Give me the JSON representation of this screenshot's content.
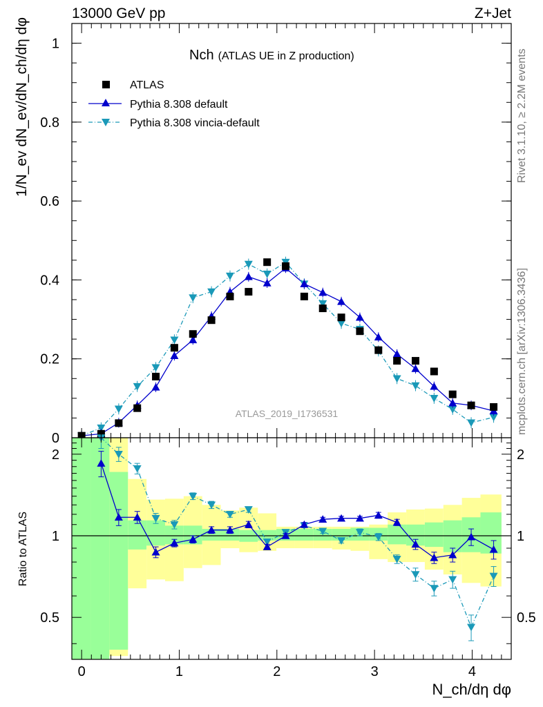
{
  "header": {
    "left": "13000 GeV pp",
    "right": "Z+Jet"
  },
  "side_labels": {
    "rivet": "Rivet 3.1.10, ≥ 2.2M events",
    "mcplots": "mcplots.cern.ch [arXiv:1306.3436]"
  },
  "watermark": "ATLAS_2019_I1736531",
  "colors": {
    "data": "#000000",
    "default": "#0000cc",
    "vincia": "#1a99b8",
    "band_inner": "#99ff99",
    "band_outer": "#ffff99"
  },
  "chart_data": [
    {
      "type": "scatter",
      "title": "Nch",
      "subtitle": "(ATLAS UE in Z production)",
      "ylabel": "1/N_ev dN_ev/dN_ch/dη dφ",
      "xlim": [
        -0.1,
        4.4
      ],
      "ylim": [
        0,
        1.05
      ],
      "y_ticks": [
        0,
        0.2,
        0.4,
        0.6,
        0.8,
        1
      ],
      "y_tick_labels": [
        "0",
        "0.2",
        "0.4",
        "0.6",
        "0.8",
        "1"
      ],
      "legend_position": "top-left",
      "series": [
        {
          "name": "ATLAS",
          "marker": "square",
          "x": [
            0.0,
            0.2,
            0.38,
            0.57,
            0.76,
            0.95,
            1.14,
            1.33,
            1.52,
            1.71,
            1.9,
            2.09,
            2.28,
            2.47,
            2.66,
            2.85,
            3.04,
            3.23,
            3.42,
            3.61,
            3.8,
            3.99,
            4.22
          ],
          "y": [
            0.005,
            0.01,
            0.037,
            0.075,
            0.155,
            0.228,
            0.263,
            0.298,
            0.358,
            0.37,
            0.445,
            0.435,
            0.358,
            0.328,
            0.305,
            0.27,
            0.222,
            0.195,
            0.195,
            0.168,
            0.11,
            0.082,
            0.078
          ]
        },
        {
          "name": "Pythia 8.308 default",
          "marker": "triangle-up",
          "x": [
            0.0,
            0.2,
            0.38,
            0.57,
            0.76,
            0.95,
            1.14,
            1.33,
            1.52,
            1.71,
            1.9,
            2.09,
            2.28,
            2.47,
            2.66,
            2.85,
            3.04,
            3.23,
            3.42,
            3.61,
            3.8,
            3.99,
            4.22
          ],
          "y": [
            0.005,
            0.01,
            0.038,
            0.082,
            0.128,
            0.208,
            0.248,
            0.308,
            0.37,
            0.408,
            0.392,
            0.43,
            0.39,
            0.368,
            0.345,
            0.305,
            0.255,
            0.212,
            0.175,
            0.13,
            0.088,
            0.082,
            0.068
          ]
        },
        {
          "name": "Pythia 8.308 vincia-default",
          "marker": "triangle-down",
          "x": [
            0.0,
            0.2,
            0.38,
            0.57,
            0.76,
            0.95,
            1.14,
            1.33,
            1.52,
            1.71,
            1.9,
            2.09,
            2.28,
            2.47,
            2.66,
            2.85,
            3.04,
            3.23,
            3.42,
            3.61,
            3.8,
            3.99,
            4.22
          ],
          "y": [
            0.005,
            0.025,
            0.073,
            0.13,
            0.178,
            0.248,
            0.355,
            0.37,
            0.41,
            0.44,
            0.415,
            0.445,
            0.39,
            0.34,
            0.29,
            0.275,
            0.22,
            0.15,
            0.132,
            0.1,
            0.072,
            0.038,
            0.052
          ]
        }
      ]
    },
    {
      "type": "scatter",
      "ylabel": "Ratio to ATLAS",
      "xlabel": "N_ch/dη dφ",
      "xlim": [
        -0.1,
        4.4
      ],
      "ylim": [
        0.35,
        2.3
      ],
      "y_scale": "log",
      "reference": 1,
      "x_ticks": [
        0,
        1,
        2,
        3,
        4
      ],
      "x_tick_labels": [
        "0",
        "1",
        "2",
        "3",
        "4"
      ],
      "y_ticks": [
        0.5,
        1,
        2
      ],
      "y_tick_labels": [
        "0.5",
        "1",
        "2"
      ],
      "bands": {
        "edges": [
          -0.1,
          0.095,
          0.285,
          0.475,
          0.665,
          0.855,
          1.045,
          1.235,
          1.425,
          1.615,
          1.805,
          1.995,
          2.185,
          2.375,
          2.565,
          2.755,
          2.945,
          3.135,
          3.325,
          3.515,
          3.705,
          3.895,
          4.085,
          4.3
        ],
        "inner_lo": [
          0.35,
          0.35,
          0.38,
          0.89,
          0.92,
          0.93,
          0.93,
          0.96,
          0.96,
          0.95,
          0.96,
          0.96,
          0.96,
          0.96,
          0.96,
          0.96,
          0.96,
          0.93,
          0.92,
          0.91,
          0.87,
          0.87,
          0.86
        ],
        "inner_hi": [
          2.3,
          2.3,
          1.72,
          1.14,
          1.14,
          1.09,
          1.09,
          1.06,
          1.06,
          1.05,
          1.05,
          1.06,
          1.06,
          1.06,
          1.06,
          1.07,
          1.07,
          1.1,
          1.1,
          1.12,
          1.14,
          1.17,
          1.22
        ],
        "outer_lo": [
          0.35,
          0.35,
          0.36,
          0.64,
          0.69,
          0.68,
          0.76,
          0.78,
          0.9,
          0.87,
          0.88,
          0.9,
          0.9,
          0.9,
          0.89,
          0.88,
          0.82,
          0.8,
          0.8,
          0.75,
          0.72,
          0.67,
          0.65
        ],
        "outer_hi": [
          2.3,
          2.3,
          2.3,
          1.62,
          1.36,
          1.37,
          1.4,
          1.3,
          1.24,
          1.27,
          1.21,
          1.08,
          1.08,
          1.08,
          1.08,
          1.08,
          1.1,
          1.22,
          1.25,
          1.26,
          1.3,
          1.38,
          1.42
        ]
      },
      "series": [
        {
          "name": "Pythia 8.308 default",
          "x": [
            0.2,
            0.38,
            0.57,
            0.76,
            0.95,
            1.14,
            1.33,
            1.52,
            1.71,
            1.9,
            2.09,
            2.28,
            2.47,
            2.66,
            2.85,
            3.04,
            3.23,
            3.42,
            3.61,
            3.8,
            3.99,
            4.22
          ],
          "y": [
            1.85,
            1.17,
            1.17,
            0.87,
            0.94,
            0.97,
            1.05,
            1.05,
            1.1,
            0.91,
            1.0,
            1.1,
            1.15,
            1.16,
            1.16,
            1.19,
            1.12,
            0.93,
            0.83,
            0.85,
            0.99,
            0.89
          ],
          "err": [
            0.2,
            0.08,
            0.06,
            0.04,
            0.03,
            0.03,
            0.03,
            0.03,
            0.03,
            0.02,
            0.02,
            0.02,
            0.02,
            0.02,
            0.02,
            0.03,
            0.03,
            0.04,
            0.04,
            0.05,
            0.07,
            0.07
          ]
        },
        {
          "name": "Pythia 8.308 vincia-default",
          "x": [
            0.2,
            0.38,
            0.57,
            0.76,
            0.95,
            1.14,
            1.33,
            1.52,
            1.71,
            1.9,
            2.09,
            2.28,
            2.47,
            2.66,
            2.85,
            3.04,
            3.23,
            3.42,
            3.61,
            3.8,
            3.99,
            4.22
          ],
          "y": [
            2.3,
            2.0,
            1.77,
            1.16,
            1.1,
            1.4,
            1.3,
            1.2,
            1.25,
            0.95,
            1.03,
            1.09,
            1.04,
            0.96,
            1.03,
            0.99,
            0.82,
            0.72,
            0.64,
            0.69,
            0.46,
            0.71
          ],
          "err": [
            0.2,
            0.12,
            0.08,
            0.05,
            0.04,
            0.04,
            0.04,
            0.03,
            0.03,
            0.02,
            0.02,
            0.02,
            0.02,
            0.02,
            0.03,
            0.03,
            0.03,
            0.04,
            0.04,
            0.05,
            0.05,
            0.06
          ]
        }
      ]
    }
  ]
}
